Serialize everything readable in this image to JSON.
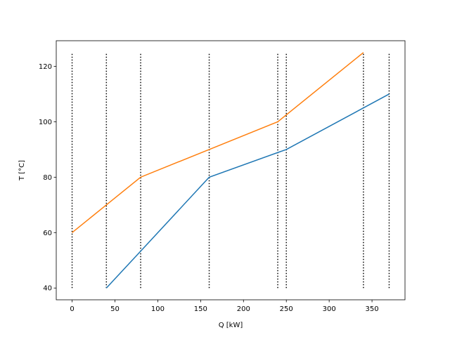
{
  "chart_data": {
    "type": "line",
    "x_label": "Q [kW]",
    "y_label": "T [°C]",
    "xlim": [
      -18.5,
      388.5
    ],
    "xticks": [
      0,
      50,
      100,
      150,
      200,
      250,
      300,
      350
    ],
    "ylim": [
      35.75,
      129.25
    ],
    "yticks": [
      40,
      60,
      80,
      100,
      120
    ],
    "series": [
      {
        "color": "#1f77b4",
        "x": [
          40,
          80,
          160,
          240,
          250,
          340,
          370
        ],
        "values": [
          40,
          53.3,
          80,
          88.9,
          90,
          105,
          110
        ]
      },
      {
        "color": "#ff7f0e",
        "x": [
          0,
          40,
          80,
          160,
          240,
          250,
          340
        ],
        "values": [
          60,
          70,
          80,
          90,
          100,
          102.5,
          125
        ]
      }
    ],
    "vlines": {
      "x": [
        0,
        40,
        80,
        160,
        240,
        250,
        340,
        370
      ],
      "ymin": 40,
      "ymax": 125,
      "color": "#000000"
    }
  }
}
